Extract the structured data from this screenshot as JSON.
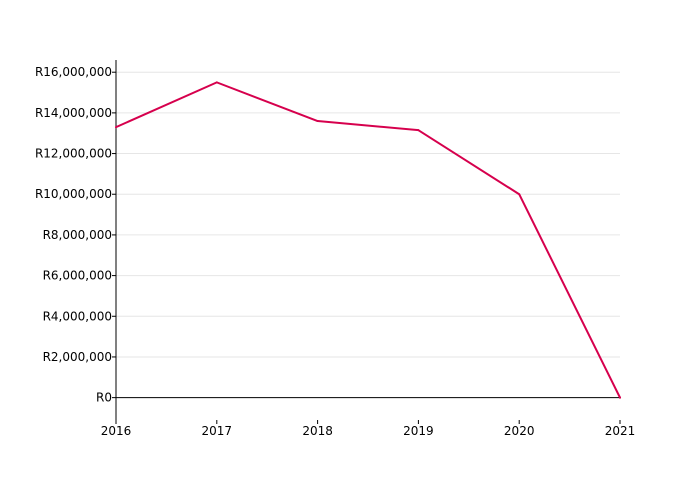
{
  "chart_data": {
    "type": "line",
    "title": "",
    "xlabel": "",
    "ylabel": "",
    "x": [
      2016,
      2017,
      2018,
      2019,
      2020,
      2021
    ],
    "x_tick_labels": [
      "2016",
      "2017",
      "2018",
      "2019",
      "2020",
      "2021"
    ],
    "xlim": [
      2016,
      2021
    ],
    "ylim": [
      -1100000,
      16600000
    ],
    "y_ticks": [
      0,
      2000000,
      4000000,
      6000000,
      8000000,
      10000000,
      12000000,
      14000000,
      16000000
    ],
    "y_tick_labels": [
      "R0",
      "R2,000,000",
      "R4,000,000",
      "R6,000,000",
      "R8,000,000",
      "R10,000,000",
      "R12,000,000",
      "R14,000,000",
      "R16,000,000"
    ],
    "grid": true,
    "series": [
      {
        "color": "#d6004d",
        "values": [
          13300000,
          15500000,
          13600000,
          13150000,
          10000000,
          0
        ]
      }
    ]
  }
}
